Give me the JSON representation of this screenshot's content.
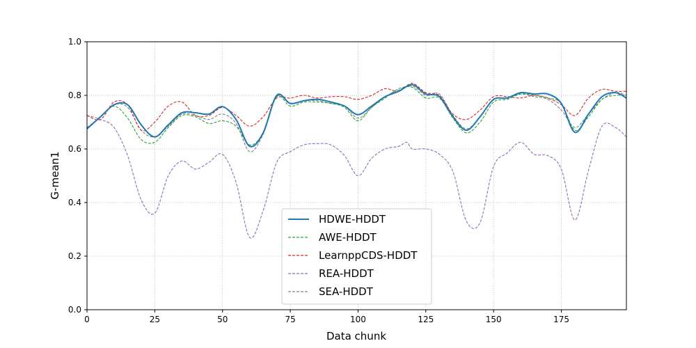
{
  "chart_data": {
    "type": "line",
    "title": "",
    "xlabel": "Data chunk",
    "ylabel": "G-mean1",
    "xlim": [
      0,
      199
    ],
    "ylim": [
      0.0,
      1.0
    ],
    "xticks": [
      0,
      25,
      50,
      75,
      100,
      125,
      150,
      175
    ],
    "yticks": [
      "0.0",
      "0.2",
      "0.4",
      "0.6",
      "0.8",
      "1.0"
    ],
    "grid": true,
    "legend_position": "lower-center",
    "series": [
      {
        "name": "HDWE-HDDT",
        "color": "#1f77b4",
        "dashed": false,
        "width": 2,
        "points": [
          [
            0,
            0.675
          ],
          [
            5,
            0.72
          ],
          [
            10,
            0.765
          ],
          [
            15,
            0.765
          ],
          [
            20,
            0.69
          ],
          [
            25,
            0.645
          ],
          [
            30,
            0.69
          ],
          [
            35,
            0.735
          ],
          [
            40,
            0.735
          ],
          [
            45,
            0.73
          ],
          [
            50,
            0.758
          ],
          [
            55,
            0.71
          ],
          [
            60,
            0.61
          ],
          [
            65,
            0.66
          ],
          [
            70,
            0.8
          ],
          [
            75,
            0.77
          ],
          [
            80,
            0.78
          ],
          [
            85,
            0.785
          ],
          [
            90,
            0.775
          ],
          [
            95,
            0.76
          ],
          [
            100,
            0.728
          ],
          [
            105,
            0.76
          ],
          [
            110,
            0.795
          ],
          [
            115,
            0.815
          ],
          [
            120,
            0.84
          ],
          [
            125,
            0.805
          ],
          [
            130,
            0.795
          ],
          [
            135,
            0.72
          ],
          [
            140,
            0.67
          ],
          [
            145,
            0.72
          ],
          [
            150,
            0.785
          ],
          [
            155,
            0.79
          ],
          [
            160,
            0.81
          ],
          [
            165,
            0.805
          ],
          [
            170,
            0.805
          ],
          [
            175,
            0.77
          ],
          [
            180,
            0.662
          ],
          [
            185,
            0.73
          ],
          [
            190,
            0.795
          ],
          [
            195,
            0.81
          ],
          [
            199,
            0.79
          ]
        ]
      },
      {
        "name": "AWE-HDDT",
        "color": "#2ca02c",
        "dashed": true,
        "width": 1.1,
        "points": [
          [
            0,
            0.675
          ],
          [
            5,
            0.72
          ],
          [
            10,
            0.76
          ],
          [
            15,
            0.715
          ],
          [
            20,
            0.635
          ],
          [
            25,
            0.625
          ],
          [
            30,
            0.68
          ],
          [
            35,
            0.725
          ],
          [
            40,
            0.72
          ],
          [
            45,
            0.695
          ],
          [
            50,
            0.705
          ],
          [
            55,
            0.685
          ],
          [
            60,
            0.615
          ],
          [
            65,
            0.66
          ],
          [
            70,
            0.795
          ],
          [
            75,
            0.76
          ],
          [
            80,
            0.775
          ],
          [
            85,
            0.775
          ],
          [
            90,
            0.77
          ],
          [
            95,
            0.755
          ],
          [
            100,
            0.705
          ],
          [
            105,
            0.755
          ],
          [
            110,
            0.79
          ],
          [
            115,
            0.825
          ],
          [
            120,
            0.83
          ],
          [
            125,
            0.79
          ],
          [
            130,
            0.79
          ],
          [
            135,
            0.715
          ],
          [
            140,
            0.66
          ],
          [
            145,
            0.7
          ],
          [
            150,
            0.775
          ],
          [
            155,
            0.785
          ],
          [
            160,
            0.805
          ],
          [
            165,
            0.8
          ],
          [
            170,
            0.79
          ],
          [
            175,
            0.77
          ],
          [
            180,
            0.67
          ],
          [
            185,
            0.72
          ],
          [
            190,
            0.785
          ],
          [
            195,
            0.8
          ],
          [
            199,
            0.8
          ]
        ]
      },
      {
        "name": "LearnppCDS-HDDT",
        "color": "#d62728",
        "dashed": true,
        "width": 1.1,
        "points": [
          [
            0,
            0.725
          ],
          [
            5,
            0.71
          ],
          [
            10,
            0.775
          ],
          [
            15,
            0.765
          ],
          [
            20,
            0.67
          ],
          [
            25,
            0.7
          ],
          [
            30,
            0.76
          ],
          [
            35,
            0.775
          ],
          [
            40,
            0.725
          ],
          [
            45,
            0.725
          ],
          [
            50,
            0.755
          ],
          [
            55,
            0.725
          ],
          [
            60,
            0.685
          ],
          [
            65,
            0.72
          ],
          [
            70,
            0.79
          ],
          [
            75,
            0.79
          ],
          [
            80,
            0.8
          ],
          [
            85,
            0.79
          ],
          [
            90,
            0.795
          ],
          [
            95,
            0.795
          ],
          [
            100,
            0.785
          ],
          [
            105,
            0.8
          ],
          [
            110,
            0.825
          ],
          [
            115,
            0.815
          ],
          [
            120,
            0.845
          ],
          [
            125,
            0.81
          ],
          [
            130,
            0.8
          ],
          [
            135,
            0.73
          ],
          [
            140,
            0.71
          ],
          [
            145,
            0.745
          ],
          [
            150,
            0.795
          ],
          [
            155,
            0.795
          ],
          [
            160,
            0.79
          ],
          [
            165,
            0.8
          ],
          [
            170,
            0.79
          ],
          [
            175,
            0.765
          ],
          [
            180,
            0.725
          ],
          [
            185,
            0.79
          ],
          [
            190,
            0.822
          ],
          [
            195,
            0.815
          ],
          [
            199,
            0.815
          ]
        ]
      },
      {
        "name": "REA-HDDT",
        "color": "#9467bd",
        "dashed": true,
        "width": 1.1,
        "points": [
          [
            0,
            0.725
          ],
          [
            5,
            0.71
          ],
          [
            10,
            0.68
          ],
          [
            15,
            0.575
          ],
          [
            20,
            0.41
          ],
          [
            25,
            0.36
          ],
          [
            30,
            0.5
          ],
          [
            35,
            0.555
          ],
          [
            40,
            0.525
          ],
          [
            45,
            0.55
          ],
          [
            50,
            0.58
          ],
          [
            55,
            0.475
          ],
          [
            60,
            0.27
          ],
          [
            65,
            0.37
          ],
          [
            70,
            0.55
          ],
          [
            75,
            0.59
          ],
          [
            80,
            0.615
          ],
          [
            85,
            0.62
          ],
          [
            90,
            0.615
          ],
          [
            95,
            0.575
          ],
          [
            100,
            0.5
          ],
          [
            105,
            0.565
          ],
          [
            110,
            0.6
          ],
          [
            115,
            0.61
          ],
          [
            118,
            0.625
          ],
          [
            120,
            0.6
          ],
          [
            125,
            0.6
          ],
          [
            130,
            0.58
          ],
          [
            135,
            0.515
          ],
          [
            140,
            0.33
          ],
          [
            145,
            0.325
          ],
          [
            150,
            0.535
          ],
          [
            155,
            0.585
          ],
          [
            160,
            0.625
          ],
          [
            165,
            0.58
          ],
          [
            170,
            0.575
          ],
          [
            175,
            0.525
          ],
          [
            180,
            0.335
          ],
          [
            185,
            0.52
          ],
          [
            190,
            0.685
          ],
          [
            195,
            0.68
          ],
          [
            199,
            0.645
          ]
        ]
      },
      {
        "name": "SEA-HDDT",
        "color": "#7f7f7f",
        "dashed": true,
        "width": 1.1,
        "points": [
          [
            0,
            0.68
          ],
          [
            5,
            0.72
          ],
          [
            10,
            0.765
          ],
          [
            15,
            0.755
          ],
          [
            20,
            0.67
          ],
          [
            25,
            0.645
          ],
          [
            30,
            0.685
          ],
          [
            35,
            0.73
          ],
          [
            40,
            0.725
          ],
          [
            45,
            0.71
          ],
          [
            50,
            0.73
          ],
          [
            55,
            0.695
          ],
          [
            60,
            0.59
          ],
          [
            65,
            0.655
          ],
          [
            70,
            0.795
          ],
          [
            75,
            0.77
          ],
          [
            80,
            0.78
          ],
          [
            85,
            0.78
          ],
          [
            90,
            0.77
          ],
          [
            95,
            0.76
          ],
          [
            100,
            0.715
          ],
          [
            105,
            0.755
          ],
          [
            110,
            0.795
          ],
          [
            115,
            0.82
          ],
          [
            120,
            0.835
          ],
          [
            125,
            0.8
          ],
          [
            130,
            0.805
          ],
          [
            135,
            0.725
          ],
          [
            140,
            0.675
          ],
          [
            145,
            0.72
          ],
          [
            150,
            0.785
          ],
          [
            155,
            0.79
          ],
          [
            160,
            0.805
          ],
          [
            165,
            0.795
          ],
          [
            170,
            0.785
          ],
          [
            175,
            0.745
          ],
          [
            180,
            0.68
          ],
          [
            185,
            0.73
          ],
          [
            190,
            0.785
          ],
          [
            195,
            0.81
          ],
          [
            199,
            0.8
          ]
        ]
      }
    ]
  }
}
